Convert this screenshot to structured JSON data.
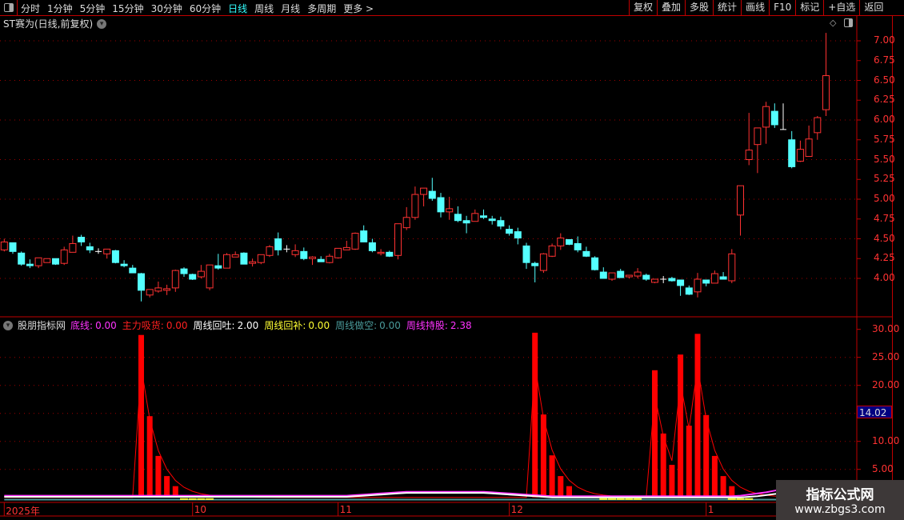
{
  "toolbar": {
    "periods": [
      "分时",
      "1分钟",
      "5分钟",
      "15分钟",
      "30分钟",
      "60分钟",
      "日线",
      "周线",
      "月线",
      "多周期",
      "更多 >"
    ],
    "active_period": "日线",
    "right_buttons": [
      "复权",
      "叠加",
      "多股",
      "统计",
      "画线",
      "F10",
      "标记",
      "+自选",
      "返回"
    ]
  },
  "title": {
    "text": "ST赛为(日线,前复权)"
  },
  "indicator": {
    "name": "股朋指标网",
    "items": [
      {
        "label": "底线:",
        "value": "0.00",
        "color": "#ff33ff"
      },
      {
        "label": "主力吸货:",
        "value": "0.00",
        "color": "#ff2020"
      },
      {
        "label": "周线回吐:",
        "value": "2.00",
        "color": "#ffffff"
      },
      {
        "label": "周线回补:",
        "value": "0.00",
        "color": "#ffff33"
      },
      {
        "label": "周线做空:",
        "value": "0.00",
        "color": "#4a9a9a"
      },
      {
        "label": "周线持股:",
        "value": "2.38",
        "color": "#ff33ff"
      }
    ],
    "cursor_value": "14.02"
  },
  "watermark": {
    "line1": "指标公式网",
    "line2": "www.zbgs3.com"
  },
  "colors": {
    "up": "#ff3232",
    "down": "#54ffff",
    "flat": "#ffffff",
    "grid": "#a00000",
    "axis": "#c00000"
  },
  "chart_data": [
    {
      "type": "candlestick",
      "ylim": [
        3.6,
        7.2
      ],
      "yticks": [
        "7.00",
        "6.75",
        "6.50",
        "6.25",
        "6.00",
        "5.75",
        "5.50",
        "5.25",
        "5.00",
        "4.75",
        "4.50",
        "4.25",
        "4.00"
      ],
      "grid": true,
      "x_ticks": [
        {
          "label": "2025年",
          "index": 0
        },
        {
          "label": "10",
          "index": 22
        },
        {
          "label": "11",
          "index": 39
        },
        {
          "label": "12",
          "index": 59
        },
        {
          "label": "1",
          "index": 82
        }
      ],
      "ohlc": [
        [
          4.36,
          4.5,
          4.34,
          4.46
        ],
        [
          4.45,
          4.45,
          4.31,
          4.34
        ],
        [
          4.32,
          4.34,
          4.16,
          4.18
        ],
        [
          4.18,
          4.24,
          4.13,
          4.16
        ],
        [
          4.16,
          4.26,
          4.13,
          4.26
        ],
        [
          4.2,
          4.25,
          4.2,
          4.25
        ],
        [
          4.25,
          4.25,
          4.17,
          4.18
        ],
        [
          4.19,
          4.4,
          4.17,
          4.36
        ],
        [
          4.33,
          4.54,
          4.33,
          4.44
        ],
        [
          4.52,
          4.55,
          4.41,
          4.46
        ],
        [
          4.4,
          4.45,
          4.32,
          4.36
        ],
        [
          4.34,
          4.38,
          4.31,
          4.34
        ],
        [
          4.31,
          4.37,
          4.25,
          4.37
        ],
        [
          4.35,
          4.36,
          4.19,
          4.2
        ],
        [
          4.18,
          4.23,
          4.14,
          4.16
        ],
        [
          4.13,
          4.17,
          4.07,
          4.07
        ],
        [
          4.06,
          4.07,
          3.71,
          3.85
        ],
        [
          3.79,
          3.86,
          3.76,
          3.86
        ],
        [
          3.84,
          3.96,
          3.82,
          3.88
        ],
        [
          3.85,
          3.92,
          3.79,
          3.87
        ],
        [
          3.88,
          4.11,
          3.83,
          4.1
        ],
        [
          4.12,
          4.14,
          4.02,
          4.06
        ],
        [
          4.05,
          4.06,
          3.98,
          3.99
        ],
        [
          4.02,
          4.17,
          4.0,
          4.09
        ],
        [
          3.88,
          4.17,
          3.85,
          4.17
        ],
        [
          4.16,
          4.31,
          4.11,
          4.13
        ],
        [
          4.13,
          4.32,
          4.13,
          4.3
        ],
        [
          4.27,
          4.34,
          4.27,
          4.3
        ],
        [
          4.32,
          4.33,
          4.18,
          4.18
        ],
        [
          4.19,
          4.25,
          4.15,
          4.21
        ],
        [
          4.2,
          4.3,
          4.18,
          4.3
        ],
        [
          4.29,
          4.42,
          4.27,
          4.4
        ],
        [
          4.5,
          4.58,
          4.29,
          4.36
        ],
        [
          4.37,
          4.42,
          4.33,
          4.37
        ],
        [
          4.3,
          4.43,
          4.27,
          4.35
        ],
        [
          4.34,
          4.39,
          4.23,
          4.25
        ],
        [
          4.25,
          4.28,
          4.17,
          4.27
        ],
        [
          4.24,
          4.28,
          4.21,
          4.21
        ],
        [
          4.2,
          4.31,
          4.19,
          4.28
        ],
        [
          4.26,
          4.38,
          4.25,
          4.38
        ],
        [
          4.36,
          4.475,
          4.36,
          4.39
        ],
        [
          4.37,
          4.58,
          4.36,
          4.57
        ],
        [
          4.6,
          4.67,
          4.46,
          4.46
        ],
        [
          4.45,
          4.5,
          4.33,
          4.35
        ],
        [
          4.32,
          4.37,
          4.29,
          4.33
        ],
        [
          4.33,
          4.35,
          4.27,
          4.28
        ],
        [
          4.29,
          4.69,
          4.24,
          4.69
        ],
        [
          4.64,
          4.9,
          4.61,
          4.77
        ],
        [
          4.77,
          5.16,
          4.74,
          5.06
        ],
        [
          5.06,
          5.14,
          4.91,
          5.14
        ],
        [
          5.1,
          5.27,
          4.98,
          5.01
        ],
        [
          5.02,
          5.08,
          4.77,
          4.84
        ],
        [
          4.84,
          5.03,
          4.74,
          4.88
        ],
        [
          4.81,
          4.91,
          4.71,
          4.73
        ],
        [
          4.73,
          4.79,
          4.57,
          4.7
        ],
        [
          4.72,
          4.87,
          4.72,
          4.82
        ],
        [
          4.79,
          4.87,
          4.75,
          4.77
        ],
        [
          4.75,
          4.79,
          4.68,
          4.73
        ],
        [
          4.73,
          4.78,
          4.62,
          4.66
        ],
        [
          4.62,
          4.67,
          4.54,
          4.57
        ],
        [
          4.59,
          4.64,
          4.43,
          4.51
        ],
        [
          4.41,
          4.45,
          4.12,
          4.2
        ],
        [
          4.19,
          4.21,
          3.95,
          4.16
        ],
        [
          4.1,
          4.32,
          4.07,
          4.31
        ],
        [
          4.28,
          4.44,
          4.27,
          4.41
        ],
        [
          4.41,
          4.57,
          4.36,
          4.51
        ],
        [
          4.49,
          4.49,
          4.42,
          4.43
        ],
        [
          4.44,
          4.53,
          4.33,
          4.36
        ],
        [
          4.34,
          4.4,
          4.27,
          4.28
        ],
        [
          4.26,
          4.28,
          4.1,
          4.11
        ],
        [
          4.08,
          4.14,
          4.0,
          4.0
        ],
        [
          3.99,
          4.07,
          3.97,
          4.07
        ],
        [
          4.09,
          4.12,
          4.01,
          4.01
        ],
        [
          4.02,
          4.04,
          4.0,
          4.04
        ],
        [
          4.03,
          4.13,
          4.0,
          4.08
        ],
        [
          4.04,
          4.06,
          3.97,
          3.99
        ],
        [
          3.95,
          3.99,
          3.94,
          3.99
        ],
        [
          3.99,
          4.03,
          3.94,
          3.99
        ],
        [
          4.0,
          4.02,
          3.96,
          3.97
        ],
        [
          3.98,
          3.98,
          3.78,
          3.91
        ],
        [
          3.88,
          3.91,
          3.79,
          3.8
        ],
        [
          3.83,
          4.07,
          3.76,
          3.99
        ],
        [
          3.98,
          3.98,
          3.9,
          3.94
        ],
        [
          3.94,
          4.1,
          3.94,
          4.06
        ],
        [
          4.02,
          4.08,
          3.99,
          3.99
        ],
        [
          3.97,
          4.37,
          3.94,
          4.31
        ],
        [
          4.8,
          5.17,
          4.54,
          5.17
        ],
        [
          5.5,
          6.09,
          5.43,
          5.62
        ],
        [
          5.69,
          5.9,
          5.33,
          5.9
        ],
        [
          5.91,
          6.23,
          5.7,
          6.17
        ],
        [
          6.11,
          6.21,
          5.9,
          5.94
        ],
        [
          5.88,
          6.21,
          5.88,
          5.88
        ],
        [
          5.75,
          5.86,
          5.39,
          5.41
        ],
        [
          5.48,
          5.74,
          5.47,
          5.63
        ],
        [
          5.54,
          5.93,
          5.54,
          5.76
        ],
        [
          5.84,
          6.05,
          5.75,
          6.03
        ],
        [
          6.13,
          7.1,
          6.05,
          6.56
        ]
      ]
    },
    {
      "type": "bar",
      "ylim": [
        -1,
        31
      ],
      "yticks": [
        "30.00",
        "25.00",
        "20.00",
        "10.00",
        "5.00"
      ],
      "grid": true,
      "series": [
        {
          "name": "主力吸货",
          "kind": "bar",
          "color": "#ff0000",
          "values": [
            0,
            0,
            0,
            0,
            0,
            0,
            0,
            0,
            0,
            0,
            0,
            0,
            0,
            0,
            0,
            0,
            29.0,
            14.5,
            7.4,
            3.8,
            2.0,
            0,
            0,
            0,
            0,
            0,
            0,
            0,
            0,
            0,
            0,
            0,
            0,
            0,
            0,
            0,
            0,
            0,
            0,
            0,
            0,
            0,
            0,
            0,
            0,
            0,
            0,
            0,
            0,
            0,
            0,
            0,
            0,
            0,
            0,
            0,
            0,
            0,
            0,
            0,
            0,
            0,
            29.4,
            14.8,
            7.5,
            3.8,
            2.0,
            0,
            0,
            0,
            0,
            0,
            0,
            0,
            0,
            0,
            22.7,
            11.4,
            5.8,
            25.5,
            12.8,
            29.2,
            14.7,
            7.4,
            3.8,
            2.0,
            0,
            0,
            0,
            0,
            0,
            0,
            0,
            0,
            0,
            0,
            0
          ]
        },
        {
          "name": "周线持股",
          "kind": "line",
          "color": "#ff33ff",
          "values": [
            0.3,
            0.3,
            0.3,
            0.3,
            0.3,
            0.3,
            0.3,
            0.3,
            0.3,
            0.3,
            0.3,
            0.3,
            0.3,
            0.3,
            0.3,
            0.3,
            0.3,
            0.3,
            0.3,
            0.3,
            0.3,
            0.3,
            0.3,
            0.3,
            0.3,
            0.3,
            0.3,
            0.3,
            0.3,
            0.3,
            0.3,
            0.3,
            0.3,
            0.3,
            0.3,
            0.3,
            0.3,
            0.3,
            0.3,
            0.3,
            0.3,
            0.4,
            0.5,
            0.6,
            0.7,
            0.8,
            0.9,
            1.0,
            1.0,
            1.0,
            1.0,
            1.0,
            1.0,
            1.0,
            1.0,
            1.0,
            1.0,
            0.9,
            0.8,
            0.7,
            0.6,
            0.5,
            0.4,
            0.3,
            0.2,
            0.2,
            0.2,
            0.2,
            0.2,
            0.2,
            0.2,
            0.2,
            0.2,
            0.2,
            0.2,
            0.2,
            0.2,
            0.2,
            0.2,
            0.2,
            0.2,
            0.2,
            0.2,
            0.2,
            0.2,
            0.2,
            0.3,
            0.5,
            0.7,
            0.9,
            1.2,
            1.5,
            1.8,
            2.0,
            2.2,
            2.3,
            2.38
          ]
        },
        {
          "name": "周线回吐",
          "kind": "line",
          "color": "#ffffff",
          "values": [
            0.1,
            0.1,
            0.1,
            0.1,
            0.1,
            0.1,
            0.1,
            0.1,
            0.1,
            0.1,
            0.1,
            0.1,
            0.1,
            0.1,
            0.1,
            0.1,
            0.1,
            0.1,
            0.1,
            0.1,
            0.1,
            0.1,
            0.1,
            0.1,
            0.1,
            0.1,
            0.1,
            0.1,
            0.1,
            0.1,
            0.1,
            0.1,
            0.1,
            0.1,
            0.1,
            0.1,
            0.1,
            0.1,
            0.1,
            0.1,
            0.1,
            0.2,
            0.3,
            0.4,
            0.5,
            0.6,
            0.7,
            0.8,
            0.8,
            0.8,
            0.8,
            0.8,
            0.8,
            0.8,
            0.8,
            0.8,
            0.8,
            0.7,
            0.6,
            0.5,
            0.4,
            0.3,
            0.2,
            0.1,
            0,
            0,
            0,
            0,
            0,
            0,
            0,
            0,
            0,
            0,
            0,
            0,
            0,
            0,
            0,
            0,
            0,
            0,
            0,
            0,
            0,
            0,
            0,
            0.1,
            0.2,
            0.4,
            0.6,
            0.8,
            1.1,
            1.4,
            1.6,
            1.8,
            2.0
          ]
        },
        {
          "name": "周线做空",
          "kind": "line",
          "color": "#4a9a9a",
          "values_constant": -0.4
        },
        {
          "name": "周线回补",
          "kind": "segments",
          "color": "#ffff33",
          "value": -0.3,
          "indices": [
            21,
            22,
            23,
            24,
            70,
            71,
            72,
            73,
            74,
            85,
            86,
            87
          ]
        }
      ]
    }
  ]
}
